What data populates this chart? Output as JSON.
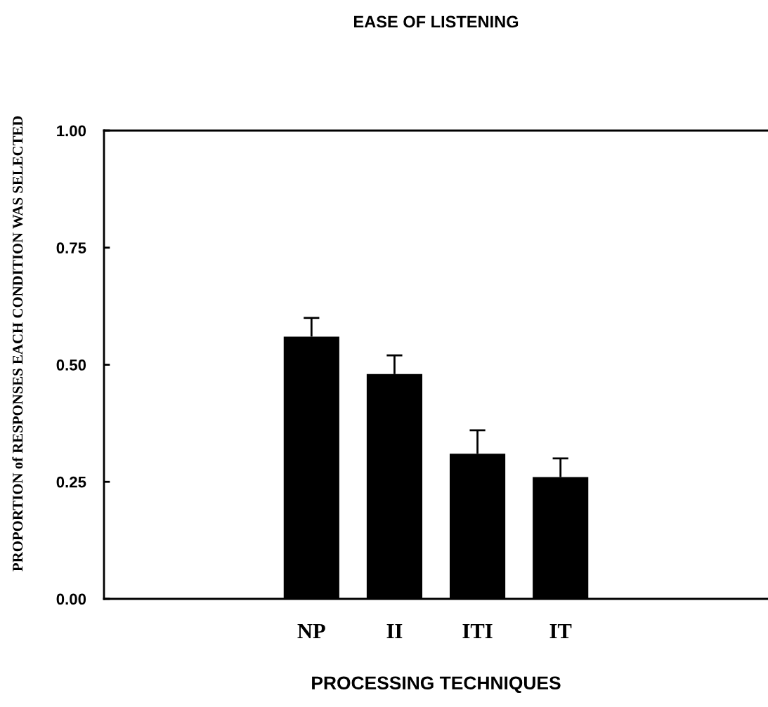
{
  "chart_data": {
    "type": "bar",
    "title": "EASE OF LISTENING",
    "xlabel": "PROCESSING TECHNIQUES",
    "ylabel": "PROPORTION of RESPONSES EACH CONDITION WAS SELECTED",
    "categories": [
      null,
      null,
      "NP",
      "II",
      "ITI",
      "IT",
      null,
      null
    ],
    "values": [
      null,
      null,
      0.56,
      0.48,
      0.31,
      0.26,
      null,
      null
    ],
    "errors": [
      null,
      null,
      [
        0.56,
        0.6
      ],
      [
        0.48,
        0.52
      ],
      [
        0.31,
        0.36
      ],
      [
        0.26,
        0.3
      ],
      null,
      null
    ],
    "color": "#000000",
    "ylim": [
      0,
      1.0
    ],
    "yticks": [
      {
        "value": 0,
        "label": "0.00"
      },
      {
        "value": 0.25,
        "label": "0.25"
      },
      {
        "value": 0.5,
        "label": "0.50"
      },
      {
        "value": 0.75,
        "label": "0.75"
      },
      {
        "value": 1.0,
        "label": "1.00"
      }
    ],
    "grid": false,
    "legend": false
  }
}
